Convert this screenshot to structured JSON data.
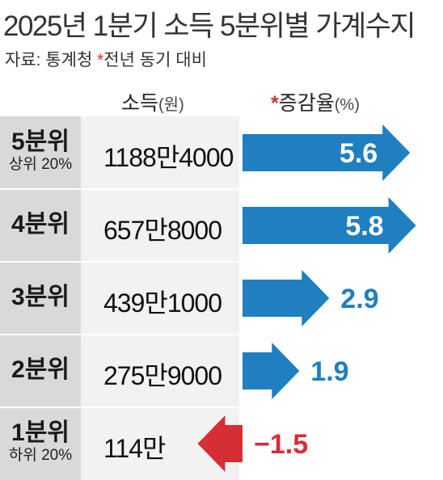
{
  "title": "2025년 1분기 소득 5분위별 가계수지",
  "source": {
    "prefix": "자료: 통계청 ",
    "star": "*",
    "note": "전년 동기 대비"
  },
  "headers": {
    "income_label": "소득",
    "income_unit": "(원)",
    "change_star": "*",
    "change_label": "증감율",
    "change_unit": "(%)"
  },
  "colors": {
    "positive": "#1f7fc0",
    "negative": "#d62e35",
    "label_bg": "#d9d9d9",
    "income_bg": "#f2f2f2"
  },
  "chart_data": {
    "type": "bar",
    "title": "2025년 1분기 소득 5분위별 가계수지",
    "categories": [
      "5분위",
      "4분위",
      "3분위",
      "2분위",
      "1분위"
    ],
    "sublabels": [
      "상위 20%",
      "",
      "",
      "",
      "하위 20%"
    ],
    "income": [
      "1188만4000",
      "657만8000",
      "439만1000",
      "275만9000",
      "114만"
    ],
    "series": [
      {
        "values": [
          5.6,
          5.8,
          2.9,
          1.9,
          -1.5
        ]
      }
    ],
    "value_labels": [
      "5.6",
      "5.8",
      "2.9",
      "1.9",
      "−1.5"
    ],
    "ylabel": "증감율(%)",
    "grid": false,
    "legend": "none"
  }
}
